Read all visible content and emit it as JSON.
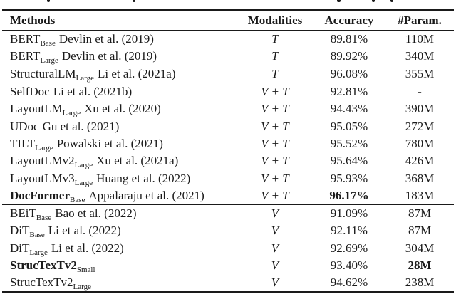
{
  "page": {
    "background": "#ffffff",
    "text_color": "#1a1a1a",
    "rule_color": "#1a1a1a"
  },
  "table": {
    "headers": [
      {
        "label": "Methods"
      },
      {
        "label": "Modalities"
      },
      {
        "label": "Accuracy"
      },
      {
        "label": "#Param."
      }
    ],
    "sections": [
      {
        "rows": [
          {
            "method": "BERT",
            "sub": "Base",
            "citation": "Devlin et al. (2019)",
            "modality": "T",
            "accuracy": "89.81%",
            "params": "110M",
            "bold": []
          },
          {
            "method": "BERT",
            "sub": "Large",
            "citation": "Devlin et al. (2019)",
            "modality": "T",
            "accuracy": "89.92%",
            "params": "340M",
            "bold": []
          },
          {
            "method": "StructuralLM",
            "sub": "Large",
            "citation": "Li et al. (2021a)",
            "modality": "T",
            "accuracy": "96.08%",
            "params": "355M",
            "bold": []
          }
        ]
      },
      {
        "rows": [
          {
            "method": "SelfDoc",
            "sub": "",
            "citation": "Li et al. (2021b)",
            "modality": "V + T",
            "accuracy": "92.81%",
            "params": "-",
            "bold": []
          },
          {
            "method": "LayoutLM",
            "sub": "Large",
            "citation": "Xu et al. (2020)",
            "modality": "V + T",
            "accuracy": "94.43%",
            "params": "390M",
            "bold": []
          },
          {
            "method": "UDoc",
            "sub": "",
            "citation": "Gu et al. (2021)",
            "modality": "V + T",
            "accuracy": "95.05%",
            "params": "272M",
            "bold": []
          },
          {
            "method": "TILT",
            "sub": "Large",
            "citation": "Powalski et al. (2021)",
            "modality": "V + T",
            "accuracy": "95.52%",
            "params": "780M",
            "bold": []
          },
          {
            "method": "LayoutLMv2",
            "sub": "Large",
            "citation": "Xu et al. (2021a)",
            "modality": "V + T",
            "accuracy": "95.64%",
            "params": "426M",
            "bold": []
          },
          {
            "method": "LayoutLMv3",
            "sub": "Large",
            "citation": "Huang et al. (2022)",
            "modality": "V + T",
            "accuracy": "95.93%",
            "params": "368M",
            "bold": []
          },
          {
            "method": "DocFormer",
            "sub": "Base",
            "citation": "Appalaraju et al. (2021)",
            "modality": "V + T",
            "accuracy": "96.17%",
            "params": "183M",
            "bold": [
              "method",
              "accuracy"
            ]
          }
        ]
      },
      {
        "rows": [
          {
            "method": "BEiT",
            "sub": "Base",
            "citation": "Bao et al. (2022)",
            "modality": "V",
            "accuracy": "91.09%",
            "params": "87M",
            "bold": []
          },
          {
            "method": "DiT",
            "sub": "Base",
            "citation": "Li et al. (2022)",
            "modality": "V",
            "accuracy": "92.11%",
            "params": "87M",
            "bold": []
          },
          {
            "method": "DiT",
            "sub": "Large",
            "citation": "Li et al. (2022)",
            "modality": "V",
            "accuracy": "92.69%",
            "params": "304M",
            "bold": []
          },
          {
            "method": "StrucTexTv2",
            "sub": "Small",
            "citation": "",
            "modality": "V",
            "accuracy": "93.40%",
            "params": "28M",
            "bold": [
              "method",
              "params"
            ]
          },
          {
            "method": "StrucTexTv2",
            "sub": "Large",
            "citation": "",
            "modality": "V",
            "accuracy": "94.62%",
            "params": "238M",
            "bold": []
          }
        ]
      }
    ]
  }
}
